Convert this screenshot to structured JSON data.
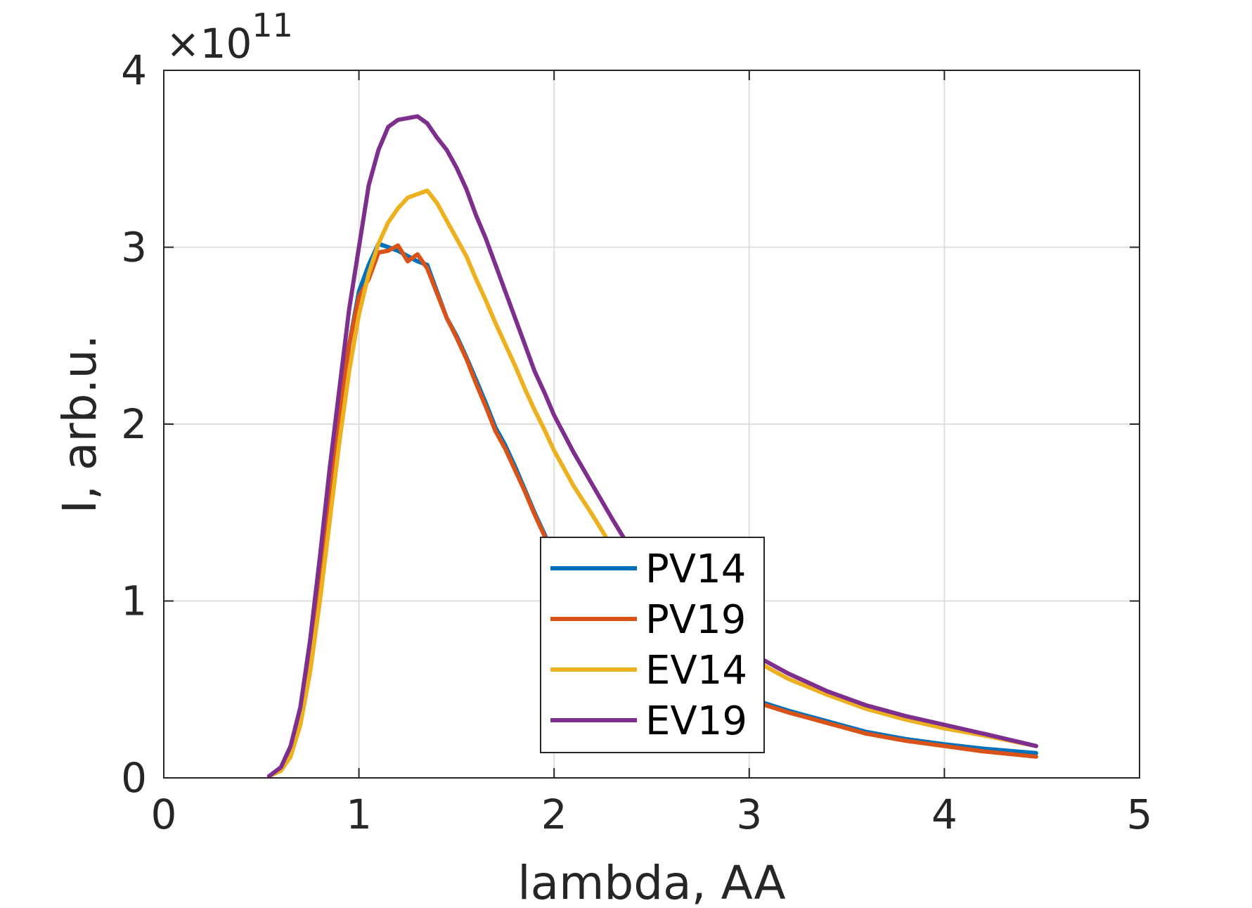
{
  "chart_data": {
    "type": "line",
    "xlabel": "lambda, AA",
    "ylabel": "I, arb.u.",
    "y_multiplier_text": "×10",
    "y_multiplier_exponent": "11",
    "xlim": [
      0,
      5
    ],
    "ylim": [
      0,
      4
    ],
    "xticks": [
      "0",
      "1",
      "2",
      "3",
      "4",
      "5"
    ],
    "yticks": [
      "0",
      "1",
      "2",
      "3",
      "4"
    ],
    "grid": true,
    "legend_position": "inside-bottom-center",
    "series": [
      {
        "name": "PV14",
        "color": "#0072BD",
        "x": [
          0.54,
          0.6,
          0.65,
          0.7,
          0.75,
          0.8,
          0.85,
          0.9,
          0.95,
          1.0,
          1.05,
          1.1,
          1.15,
          1.2,
          1.25,
          1.3,
          1.35,
          1.4,
          1.45,
          1.5,
          1.55,
          1.6,
          1.65,
          1.7,
          1.75,
          1.8,
          1.85,
          1.9,
          1.95,
          2.0,
          2.1,
          2.2,
          2.3,
          2.4,
          2.5,
          2.6,
          2.7,
          2.8,
          2.9,
          3.0,
          3.2,
          3.4,
          3.6,
          3.8,
          4.0,
          4.2,
          4.47
        ],
        "y": [
          0.01,
          0.05,
          0.15,
          0.35,
          0.7,
          1.15,
          1.6,
          2.05,
          2.45,
          2.75,
          2.9,
          3.02,
          3.0,
          2.98,
          2.95,
          2.92,
          2.9,
          2.75,
          2.6,
          2.5,
          2.38,
          2.25,
          2.12,
          1.98,
          1.88,
          1.76,
          1.63,
          1.5,
          1.38,
          1.26,
          1.05,
          0.9,
          0.79,
          0.7,
          0.62,
          0.56,
          0.52,
          0.5,
          0.48,
          0.45,
          0.38,
          0.32,
          0.26,
          0.22,
          0.19,
          0.165,
          0.14
        ]
      },
      {
        "name": "PV19",
        "color": "#D95319",
        "x": [
          0.54,
          0.6,
          0.65,
          0.7,
          0.75,
          0.8,
          0.85,
          0.9,
          0.95,
          1.0,
          1.05,
          1.1,
          1.15,
          1.2,
          1.25,
          1.3,
          1.35,
          1.4,
          1.45,
          1.5,
          1.55,
          1.6,
          1.65,
          1.7,
          1.75,
          1.8,
          1.85,
          1.9,
          1.95,
          2.0,
          2.1,
          2.2,
          2.3,
          2.4,
          2.5,
          2.6,
          2.7,
          2.8,
          2.9,
          3.0,
          3.2,
          3.4,
          3.6,
          3.8,
          4.0,
          4.2,
          4.47
        ],
        "y": [
          0.01,
          0.05,
          0.15,
          0.35,
          0.7,
          1.15,
          1.6,
          2.05,
          2.45,
          2.72,
          2.82,
          2.97,
          2.98,
          3.01,
          2.92,
          2.96,
          2.88,
          2.74,
          2.6,
          2.49,
          2.37,
          2.23,
          2.1,
          1.96,
          1.86,
          1.74,
          1.62,
          1.49,
          1.37,
          1.25,
          1.04,
          0.89,
          0.78,
          0.69,
          0.61,
          0.55,
          0.51,
          0.49,
          0.47,
          0.44,
          0.37,
          0.31,
          0.25,
          0.21,
          0.18,
          0.15,
          0.12
        ]
      },
      {
        "name": "EV14",
        "color": "#EDB120",
        "x": [
          0.54,
          0.6,
          0.65,
          0.7,
          0.75,
          0.8,
          0.85,
          0.9,
          0.95,
          1.0,
          1.05,
          1.1,
          1.15,
          1.2,
          1.25,
          1.3,
          1.35,
          1.4,
          1.45,
          1.5,
          1.55,
          1.6,
          1.65,
          1.7,
          1.75,
          1.8,
          1.85,
          1.9,
          1.95,
          2.0,
          2.1,
          2.2,
          2.3,
          2.4,
          2.5,
          2.6,
          2.7,
          2.8,
          2.9,
          3.0,
          3.2,
          3.4,
          3.6,
          3.8,
          4.0,
          4.2,
          4.47
        ],
        "y": [
          0.01,
          0.04,
          0.12,
          0.3,
          0.6,
          1.0,
          1.45,
          1.9,
          2.3,
          2.62,
          2.85,
          3.02,
          3.14,
          3.22,
          3.28,
          3.3,
          3.32,
          3.25,
          3.15,
          3.05,
          2.95,
          2.82,
          2.7,
          2.57,
          2.45,
          2.33,
          2.2,
          2.08,
          1.97,
          1.85,
          1.65,
          1.48,
          1.3,
          1.15,
          1.02,
          0.92,
          0.84,
          0.77,
          0.72,
          0.68,
          0.56,
          0.47,
          0.39,
          0.33,
          0.28,
          0.24,
          0.18
        ]
      },
      {
        "name": "EV19",
        "color": "#7E2F8E",
        "x": [
          0.54,
          0.6,
          0.65,
          0.7,
          0.75,
          0.8,
          0.85,
          0.9,
          0.95,
          1.0,
          1.05,
          1.1,
          1.15,
          1.2,
          1.25,
          1.3,
          1.35,
          1.4,
          1.45,
          1.5,
          1.55,
          1.6,
          1.65,
          1.7,
          1.75,
          1.8,
          1.85,
          1.9,
          1.95,
          2.0,
          2.1,
          2.2,
          2.3,
          2.4,
          2.5,
          2.6,
          2.7,
          2.8,
          2.9,
          3.0,
          3.2,
          3.4,
          3.6,
          3.8,
          4.0,
          4.2,
          4.47
        ],
        "y": [
          0.01,
          0.06,
          0.18,
          0.4,
          0.78,
          1.25,
          1.75,
          2.2,
          2.65,
          3.0,
          3.35,
          3.55,
          3.68,
          3.72,
          3.73,
          3.74,
          3.7,
          3.62,
          3.55,
          3.45,
          3.33,
          3.18,
          3.05,
          2.9,
          2.75,
          2.6,
          2.45,
          2.3,
          2.18,
          2.05,
          1.84,
          1.65,
          1.46,
          1.28,
          1.12,
          1.0,
          0.9,
          0.82,
          0.76,
          0.71,
          0.59,
          0.49,
          0.41,
          0.35,
          0.3,
          0.25,
          0.18
        ]
      }
    ]
  }
}
